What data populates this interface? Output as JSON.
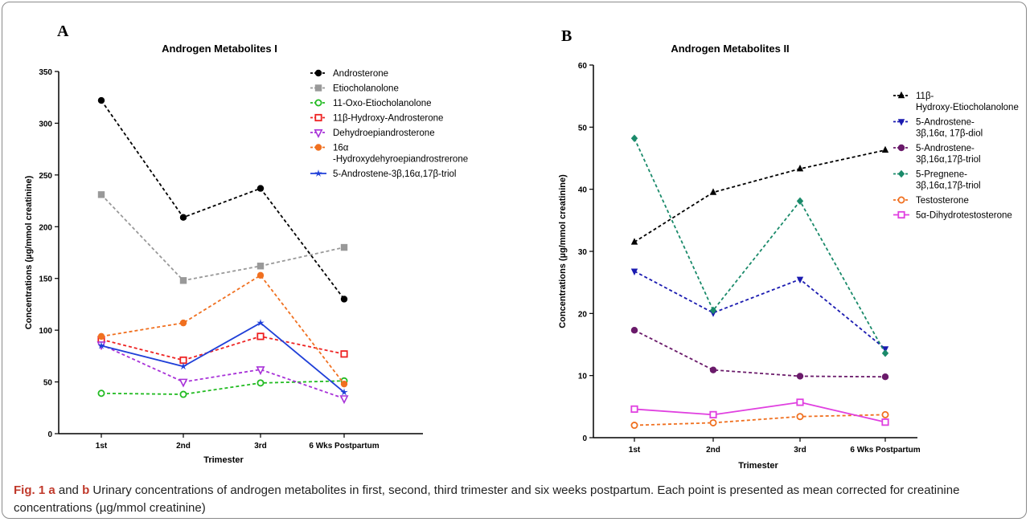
{
  "chart_data": [
    {
      "type": "line",
      "panel_label": "A",
      "title": "Androgen Metabolites I",
      "xlabel": "Trimester",
      "ylabel": "Concentrations (µg/mmol creatinine)",
      "categories": [
        "1st",
        "2nd",
        "3rd",
        "6 Wks Postpartum"
      ],
      "ylim": [
        0,
        350
      ],
      "yticks": [
        0,
        50,
        100,
        150,
        200,
        250,
        300,
        350
      ],
      "legend_position": "right",
      "series": [
        {
          "name": "Androsterone",
          "values": [
            322,
            209,
            237,
            130
          ],
          "color": "#000000",
          "dash": true,
          "marker": "circle"
        },
        {
          "name": "Etiocholanolone",
          "values": [
            231,
            148,
            162,
            180
          ],
          "color": "#999999",
          "dash": true,
          "marker": "square"
        },
        {
          "name": "11-Oxo-Etiocholanolone",
          "values": [
            39,
            38,
            49,
            51
          ],
          "color": "#22bb22",
          "dash": true,
          "marker": "hex-open"
        },
        {
          "name": "11β-Hydroxy-Androsterone",
          "values": [
            91,
            71,
            94,
            77
          ],
          "color": "#ee2222",
          "dash": true,
          "marker": "square-open"
        },
        {
          "name": "Dehydroepiandrosterone",
          "values": [
            86,
            50,
            62,
            34
          ],
          "color": "#a832d8",
          "dash": true,
          "marker": "tri-down-open"
        },
        {
          "name": "16α-Hydroxydehyroepiandrostrerone",
          "values": [
            94,
            107,
            153,
            48
          ],
          "color": "#f07020",
          "dash": true,
          "marker": "hex"
        },
        {
          "name": "5-Androstene-3β,16α,17β-triol",
          "values": [
            85,
            65,
            107,
            40
          ],
          "color": "#1f3fd8",
          "dash": false,
          "marker": "star"
        }
      ]
    },
    {
      "type": "line",
      "panel_label": "B",
      "title": "Androgen Metabolites II",
      "xlabel": "Trimester",
      "ylabel": "Concentrations (µg/mmol creatinine)",
      "categories": [
        "1st",
        "2nd",
        "3rd",
        "6 Wks Postpartum"
      ],
      "ylim": [
        0,
        60
      ],
      "yticks": [
        0,
        10,
        20,
        30,
        40,
        50,
        60
      ],
      "legend_position": "right",
      "series": [
        {
          "name": "11β-Hydroxy-Etiocholanolone",
          "values": [
            31.5,
            39.5,
            43.3,
            46.3
          ],
          "color": "#000000",
          "dash": true,
          "marker": "tri-up"
        },
        {
          "name": "5-Androstene-3β,16α, 17β-diol",
          "values": [
            26.8,
            20.1,
            25.5,
            14.3
          ],
          "color": "#1a1ab0",
          "dash": true,
          "marker": "tri-down"
        },
        {
          "name": "5-Androstene-3β,16α,17β-triol",
          "values": [
            17.3,
            10.9,
            9.9,
            9.8
          ],
          "color": "#6a1a6a",
          "dash": true,
          "marker": "hex"
        },
        {
          "name": "5-Pregnene-3β,16α,17β-triol",
          "values": [
            48.2,
            20.5,
            38.1,
            13.6
          ],
          "color": "#1a8a6a",
          "dash": true,
          "marker": "diamond"
        },
        {
          "name": "Testosterone",
          "values": [
            2.0,
            2.4,
            3.4,
            3.7
          ],
          "color": "#f07020",
          "dash": true,
          "marker": "hex-open"
        },
        {
          "name": "5α-Dihydrotestosterone",
          "values": [
            4.6,
            3.7,
            5.7,
            2.5
          ],
          "color": "#e040e0",
          "dash": false,
          "marker": "square-open"
        }
      ]
    }
  ],
  "caption": {
    "lead": "Fig. 1 a",
    "mid": " and ",
    "b": "b",
    "text": " Urinary concentrations of androgen metabolites in first, second, third trimester and six weeks postpartum. Each point is presented as mean corrected for creatinine concentrations (µg/mmol creatinine)"
  }
}
